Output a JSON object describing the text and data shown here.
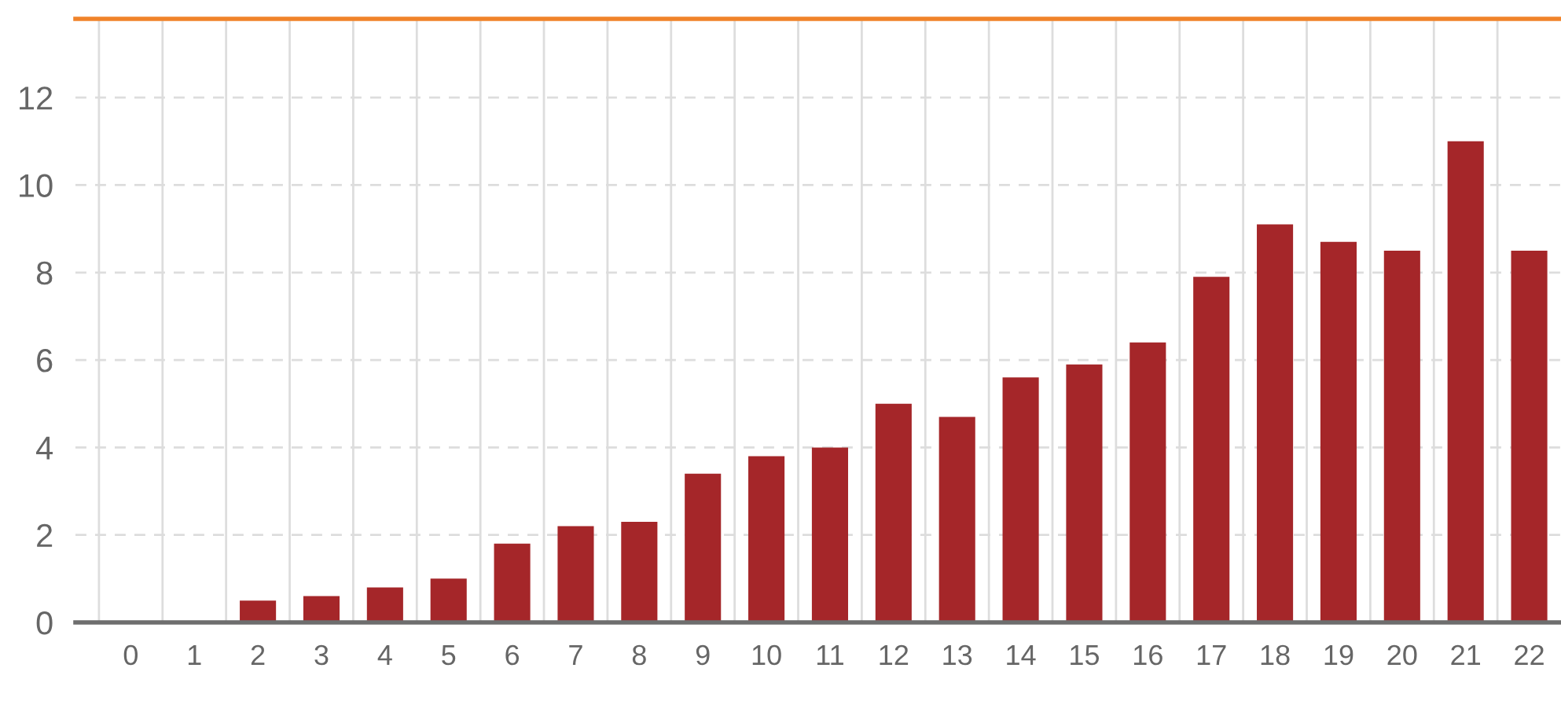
{
  "chart_data": {
    "type": "bar",
    "categories": [
      "0",
      "1",
      "2",
      "3",
      "4",
      "5",
      "6",
      "7",
      "8",
      "9",
      "10",
      "11",
      "12",
      "13",
      "14",
      "15",
      "16",
      "17",
      "18",
      "19",
      "20",
      "21",
      "22"
    ],
    "values": [
      0,
      0,
      0.5,
      0.6,
      0.8,
      1.0,
      1.8,
      2.2,
      2.3,
      3.4,
      3.8,
      4.0,
      5.0,
      4.7,
      5.6,
      5.9,
      6.4,
      7.9,
      9.1,
      8.7,
      8.5,
      11.0,
      8.5
    ],
    "color": "#a52629",
    "ylim": [
      0,
      13.8
    ],
    "yticks": [
      0,
      2,
      4,
      6,
      8,
      10,
      12
    ],
    "grid": true
  }
}
